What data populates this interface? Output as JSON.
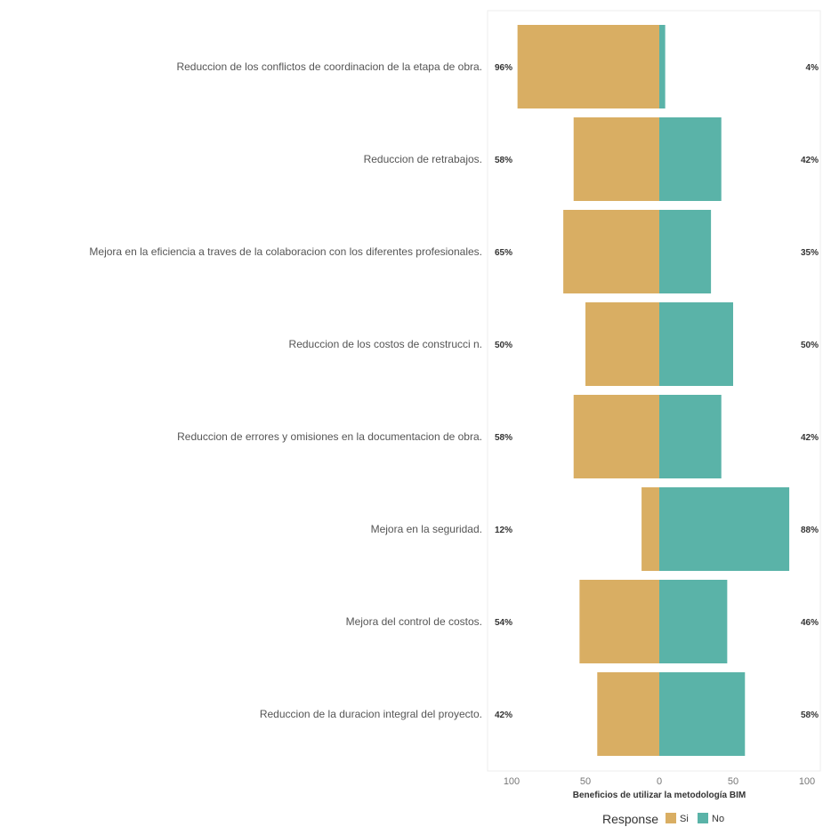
{
  "chart_data": {
    "type": "bar",
    "orientation": "horizontal-diverging",
    "categories": [
      "Reduccion de los conflictos de coordinacion de la etapa de obra.",
      "Reduccion de retrabajos.",
      "Mejora en la eficiencia a traves de la colaboracion con los diferentes profesionales.",
      "Reduccion de los costos de construcci n.",
      "Reduccion de errores y omisiones en la documentacion de obra.",
      "Mejora en la seguridad.",
      "Mejora del control de costos.",
      "Reduccion de la duracion integral del proyecto."
    ],
    "series": [
      {
        "name": "Si",
        "values": [
          96,
          58,
          65,
          50,
          58,
          12,
          54,
          42
        ],
        "color": "#D9AE63"
      },
      {
        "name": "No",
        "values": [
          4,
          42,
          35,
          50,
          42,
          88,
          46,
          58
        ],
        "color": "#5AB3A8"
      }
    ],
    "left_labels": [
      "96%",
      "58%",
      "65%",
      "50%",
      "58%",
      "12%",
      "54%",
      "42%"
    ],
    "right_labels": [
      "4%",
      "42%",
      "35%",
      "50%",
      "42%",
      "88%",
      "46%",
      "58%"
    ],
    "xlabel": "Beneficios de utilizar la metodología BIM",
    "ylabel": "",
    "xlim": [
      -100,
      100
    ],
    "xticks": [
      -100,
      -50,
      0,
      50,
      100
    ],
    "xtick_labels": [
      "100",
      "50",
      "0",
      "50",
      "100"
    ],
    "legend_title": "Response",
    "legend_position": "bottom",
    "grid": false
  }
}
